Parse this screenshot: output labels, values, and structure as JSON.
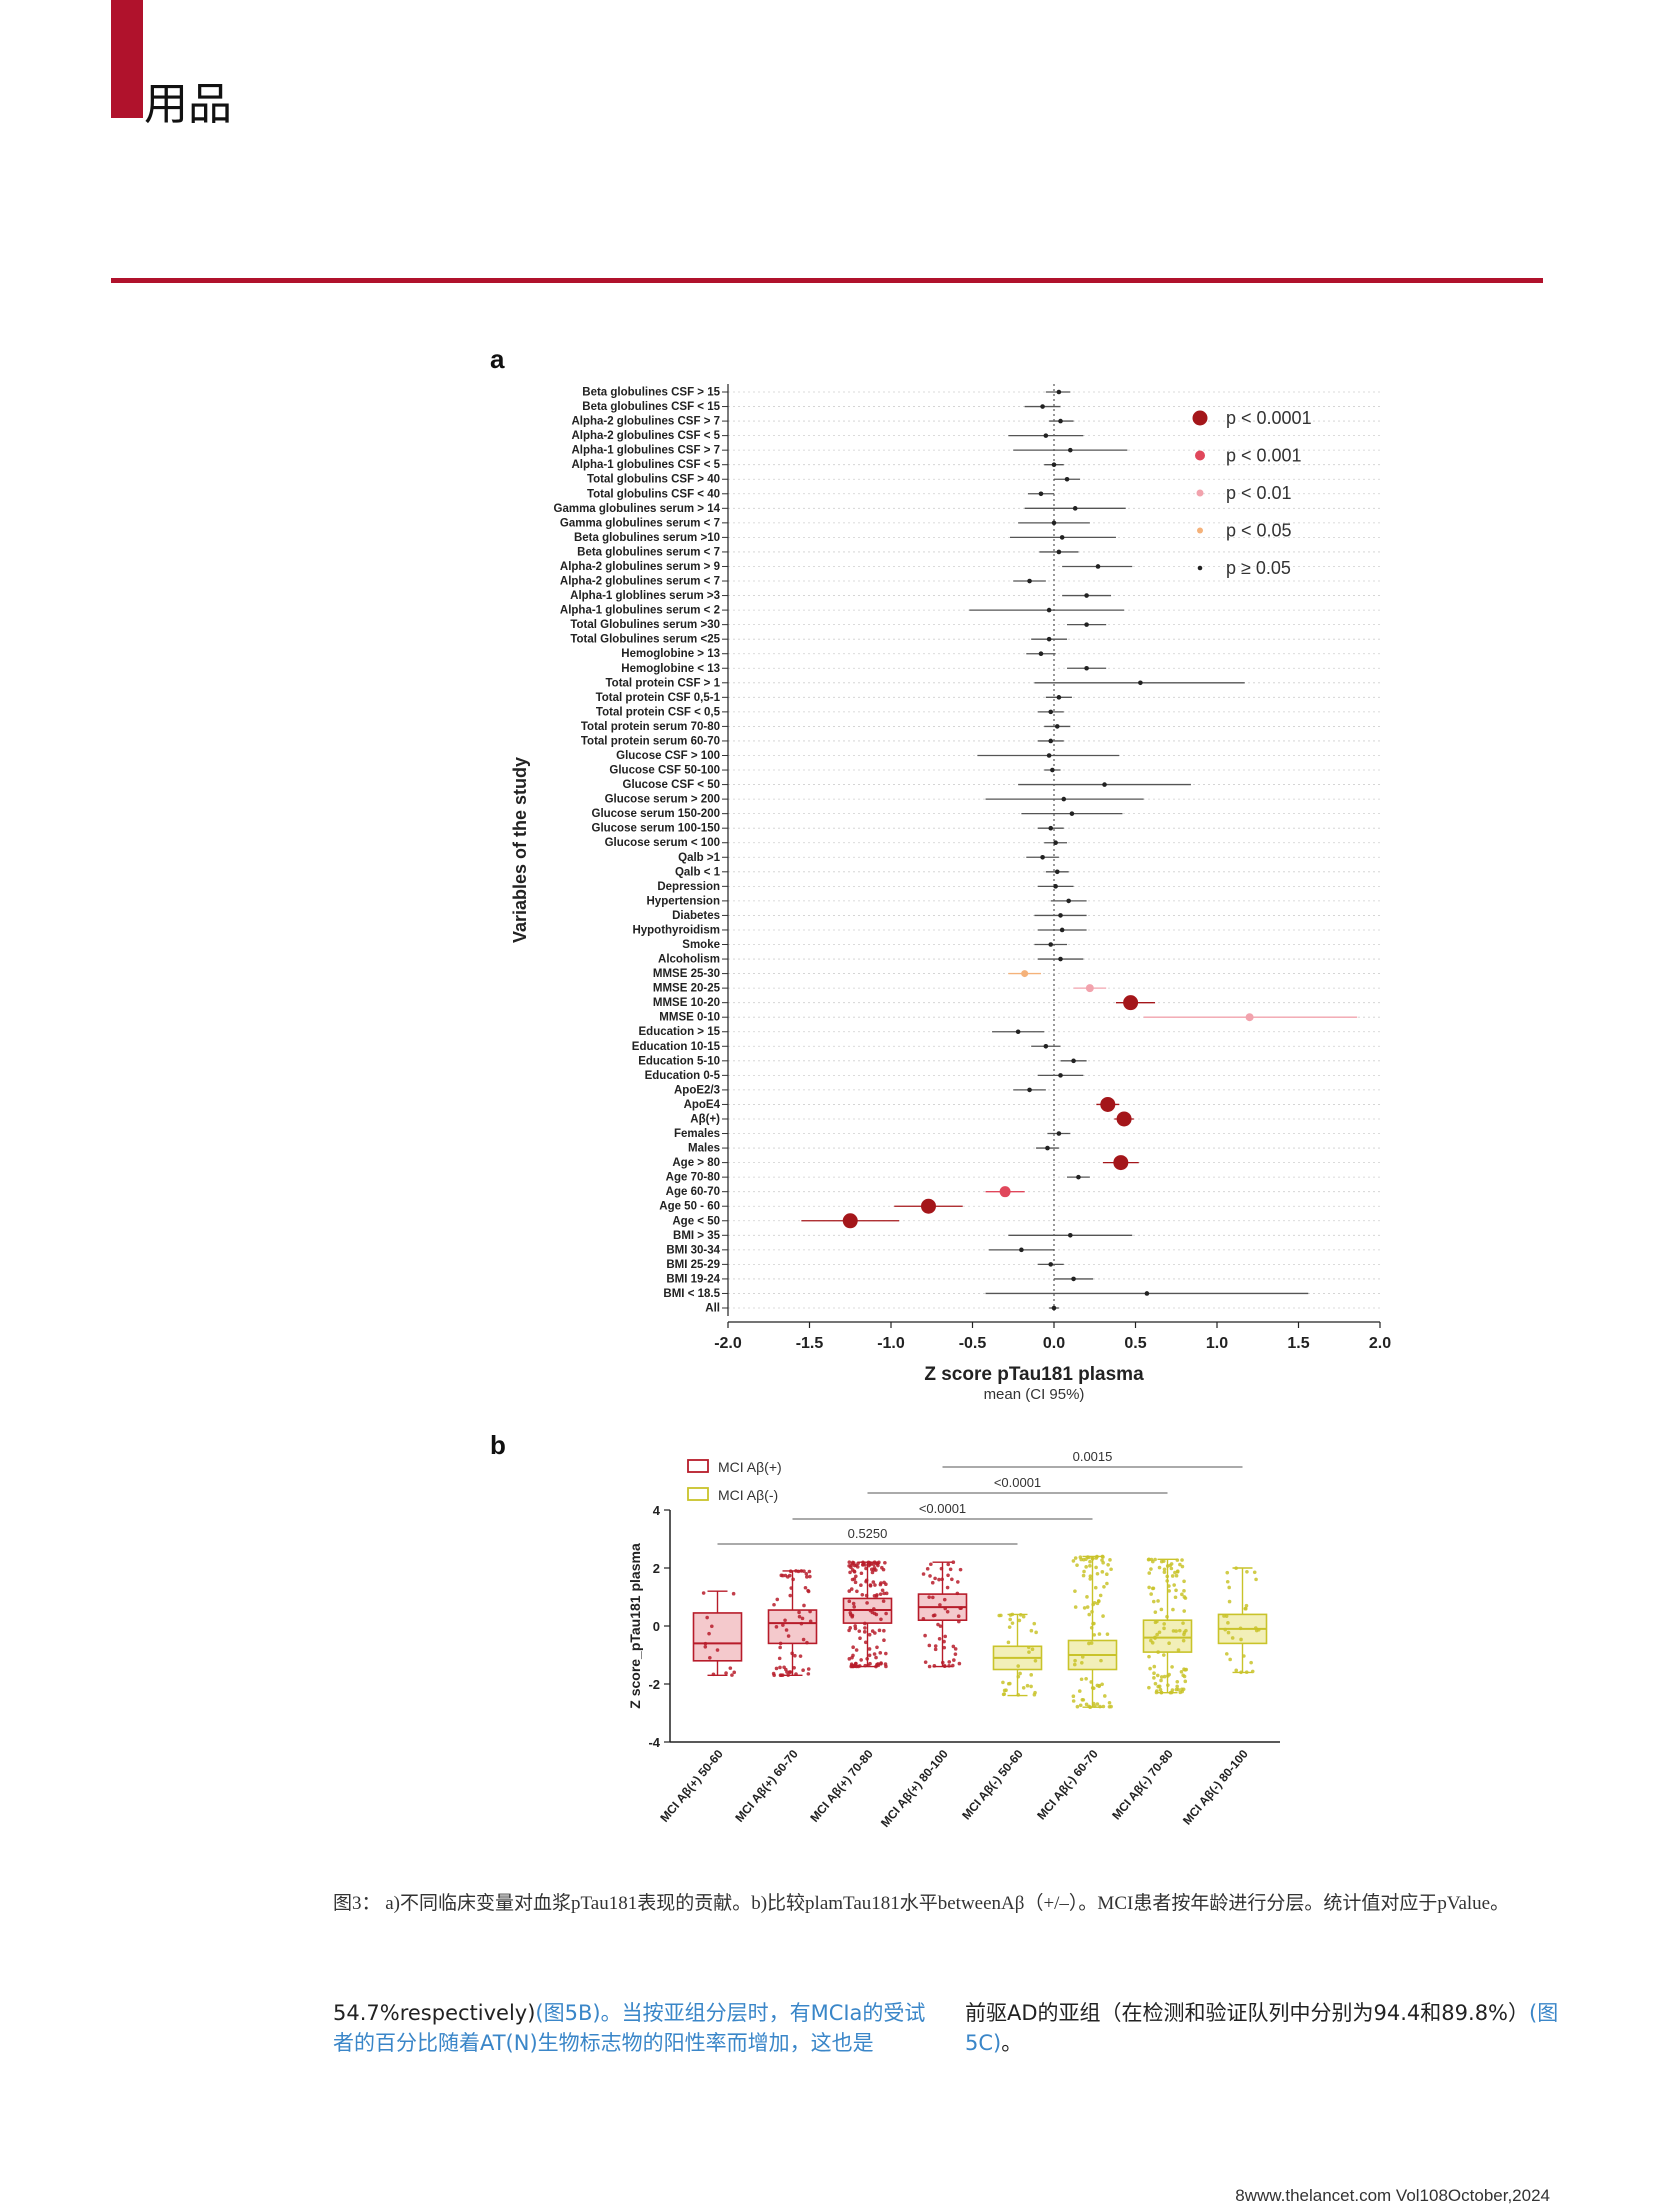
{
  "header": {
    "section_title": "用品"
  },
  "figure_a": {
    "panel_label": "a",
    "chart_data": {
      "type": "scatter",
      "subtype": "forest-plot",
      "xlabel": "Z score pTau181 plasma",
      "xlabel_sub": "mean (CI 95%)",
      "ylabel": "Variables of the study",
      "xlim": [
        -2.0,
        2.0
      ],
      "xticks": [
        "-2.0",
        "-1.5",
        "-1.0",
        "-0.5",
        "0.0",
        "0.5",
        "1.0",
        "1.5",
        "2.0"
      ],
      "legend": [
        {
          "label": "p < 0.0001",
          "color": "#a4161a"
        },
        {
          "label": "p < 0.001",
          "color": "#e0475b"
        },
        {
          "label": "p < 0.01",
          "color": "#f2a3ad"
        },
        {
          "label": "p < 0.05",
          "color": "#f5b27a"
        },
        {
          "label": "p ≥ 0.05",
          "color": "#222222"
        }
      ],
      "legend_position": "top-right",
      "rows": [
        {
          "label": "Beta globulines CSF > 15",
          "mean": 0.03,
          "lo": -0.05,
          "hi": 0.1,
          "p": "ns"
        },
        {
          "label": "Beta globulines CSF < 15",
          "mean": -0.07,
          "lo": -0.18,
          "hi": 0.04,
          "p": "ns"
        },
        {
          "label": "Alpha-2 globulines CSF > 7",
          "mean": 0.04,
          "lo": -0.03,
          "hi": 0.12,
          "p": "ns"
        },
        {
          "label": "Alpha-2 globulines CSF < 5",
          "mean": -0.05,
          "lo": -0.28,
          "hi": 0.18,
          "p": "ns"
        },
        {
          "label": "Alpha-1 globulines CSF > 7",
          "mean": 0.1,
          "lo": -0.25,
          "hi": 0.45,
          "p": "ns"
        },
        {
          "label": "Alpha-1 globulines CSF < 5",
          "mean": 0.0,
          "lo": -0.06,
          "hi": 0.06,
          "p": "ns"
        },
        {
          "label": "Total globulins CSF > 40",
          "mean": 0.08,
          "lo": 0.0,
          "hi": 0.16,
          "p": "ns"
        },
        {
          "label": "Total globulins CSF < 40",
          "mean": -0.08,
          "lo": -0.16,
          "hi": 0.0,
          "p": "ns"
        },
        {
          "label": "Gamma globulines serum > 14",
          "mean": 0.13,
          "lo": -0.18,
          "hi": 0.44,
          "p": "ns"
        },
        {
          "label": "Gamma globulines serum < 7",
          "mean": 0.0,
          "lo": -0.22,
          "hi": 0.22,
          "p": "ns"
        },
        {
          "label": "Beta globulines serum >10",
          "mean": 0.05,
          "lo": -0.27,
          "hi": 0.38,
          "p": "ns"
        },
        {
          "label": "Beta globulines serum < 7",
          "mean": 0.03,
          "lo": -0.09,
          "hi": 0.15,
          "p": "ns"
        },
        {
          "label": "Alpha-2 globulines serum > 9",
          "mean": 0.27,
          "lo": 0.05,
          "hi": 0.48,
          "p": "ns"
        },
        {
          "label": "Alpha-2 globulines serum < 7",
          "mean": -0.15,
          "lo": -0.25,
          "hi": -0.05,
          "p": "ns"
        },
        {
          "label": "Alpha-1 globlines serum >3",
          "mean": 0.2,
          "lo": 0.05,
          "hi": 0.35,
          "p": "ns"
        },
        {
          "label": "Alpha-1 globulines serum < 2",
          "mean": -0.03,
          "lo": -0.52,
          "hi": 0.43,
          "p": "ns"
        },
        {
          "label": "Total Globulines serum >30",
          "mean": 0.2,
          "lo": 0.08,
          "hi": 0.32,
          "p": "ns"
        },
        {
          "label": "Total Globulines serum <25",
          "mean": -0.03,
          "lo": -0.14,
          "hi": 0.08,
          "p": "ns"
        },
        {
          "label": "Hemoglobine > 13",
          "mean": -0.08,
          "lo": -0.17,
          "hi": 0.01,
          "p": "ns"
        },
        {
          "label": "Hemoglobine < 13",
          "mean": 0.2,
          "lo": 0.08,
          "hi": 0.32,
          "p": "ns"
        },
        {
          "label": "Total protein CSF > 1",
          "mean": 0.53,
          "lo": -0.12,
          "hi": 1.17,
          "p": "ns"
        },
        {
          "label": "Total protein CSF 0,5-1",
          "mean": 0.03,
          "lo": -0.05,
          "hi": 0.11,
          "p": "ns"
        },
        {
          "label": "Total protein CSF < 0,5",
          "mean": -0.02,
          "lo": -0.1,
          "hi": 0.06,
          "p": "ns"
        },
        {
          "label": "Total protein serum 70-80",
          "mean": 0.02,
          "lo": -0.06,
          "hi": 0.1,
          "p": "ns"
        },
        {
          "label": "Total protein serum 60-70",
          "mean": -0.02,
          "lo": -0.1,
          "hi": 0.06,
          "p": "ns"
        },
        {
          "label": "Glucose CSF > 100",
          "mean": -0.03,
          "lo": -0.47,
          "hi": 0.4,
          "p": "ns"
        },
        {
          "label": "Glucose CSF 50-100",
          "mean": -0.01,
          "lo": -0.06,
          "hi": 0.04,
          "p": "ns"
        },
        {
          "label": "Glucose CSF < 50",
          "mean": 0.31,
          "lo": -0.22,
          "hi": 0.84,
          "p": "ns"
        },
        {
          "label": "Glucose serum > 200",
          "mean": 0.06,
          "lo": -0.42,
          "hi": 0.55,
          "p": "ns"
        },
        {
          "label": "Glucose serum 150-200",
          "mean": 0.11,
          "lo": -0.2,
          "hi": 0.42,
          "p": "ns"
        },
        {
          "label": "Glucose serum 100-150",
          "mean": -0.02,
          "lo": -0.1,
          "hi": 0.06,
          "p": "ns"
        },
        {
          "label": "Glucose serum < 100",
          "mean": 0.01,
          "lo": -0.06,
          "hi": 0.08,
          "p": "ns"
        },
        {
          "label": "Qalb >1",
          "mean": -0.07,
          "lo": -0.17,
          "hi": 0.03,
          "p": "ns"
        },
        {
          "label": "Qalb < 1",
          "mean": 0.02,
          "lo": -0.05,
          "hi": 0.09,
          "p": "ns"
        },
        {
          "label": "Depression",
          "mean": 0.01,
          "lo": -0.1,
          "hi": 0.12,
          "p": "ns"
        },
        {
          "label": "Hypertension",
          "mean": 0.09,
          "lo": -0.02,
          "hi": 0.2,
          "p": "ns"
        },
        {
          "label": "Diabetes",
          "mean": 0.04,
          "lo": -0.12,
          "hi": 0.2,
          "p": "ns"
        },
        {
          "label": "Hypothyroidism",
          "mean": 0.05,
          "lo": -0.1,
          "hi": 0.2,
          "p": "ns"
        },
        {
          "label": "Smoke",
          "mean": -0.02,
          "lo": -0.12,
          "hi": 0.08,
          "p": "ns"
        },
        {
          "label": "Alcoholism",
          "mean": 0.04,
          "lo": -0.1,
          "hi": 0.18,
          "p": "ns"
        },
        {
          "label": "MMSE 25-30",
          "mean": -0.18,
          "lo": -0.28,
          "hi": -0.08,
          "p": "p<0.05"
        },
        {
          "label": "MMSE 20-25",
          "mean": 0.22,
          "lo": 0.12,
          "hi": 0.32,
          "p": "p<0.01"
        },
        {
          "label": "MMSE 10-20",
          "mean": 0.47,
          "lo": 0.38,
          "hi": 0.62,
          "p": "p<0.0001"
        },
        {
          "label": "MMSE 0-10",
          "mean": 1.2,
          "lo": 0.55,
          "hi": 1.86,
          "p": "p<0.01"
        },
        {
          "label": "Education > 15",
          "mean": -0.22,
          "lo": -0.38,
          "hi": -0.06,
          "p": "ns"
        },
        {
          "label": "Education 10-15",
          "mean": -0.05,
          "lo": -0.14,
          "hi": 0.04,
          "p": "ns"
        },
        {
          "label": "Education 5-10",
          "mean": 0.12,
          "lo": 0.04,
          "hi": 0.2,
          "p": "ns"
        },
        {
          "label": "Education 0-5",
          "mean": 0.04,
          "lo": -0.1,
          "hi": 0.18,
          "p": "ns"
        },
        {
          "label": "ApoE2/3",
          "mean": -0.15,
          "lo": -0.25,
          "hi": -0.05,
          "p": "ns"
        },
        {
          "label": "ApoE4",
          "mean": 0.33,
          "lo": 0.26,
          "hi": 0.4,
          "p": "p<0.0001"
        },
        {
          "label": "Aβ(+)",
          "mean": 0.43,
          "lo": 0.37,
          "hi": 0.49,
          "p": "p<0.0001"
        },
        {
          "label": "Females",
          "mean": 0.03,
          "lo": -0.04,
          "hi": 0.1,
          "p": "ns"
        },
        {
          "label": "Males",
          "mean": -0.04,
          "lo": -0.11,
          "hi": 0.03,
          "p": "ns"
        },
        {
          "label": "Age > 80",
          "mean": 0.41,
          "lo": 0.3,
          "hi": 0.52,
          "p": "p<0.0001"
        },
        {
          "label": "Age 70-80",
          "mean": 0.15,
          "lo": 0.08,
          "hi": 0.22,
          "p": "ns"
        },
        {
          "label": "Age 60-70",
          "mean": -0.3,
          "lo": -0.42,
          "hi": -0.18,
          "p": "p<0.001"
        },
        {
          "label": "Age 50 - 60",
          "mean": -0.77,
          "lo": -0.98,
          "hi": -0.56,
          "p": "p<0.0001"
        },
        {
          "label": "Age < 50",
          "mean": -1.25,
          "lo": -1.55,
          "hi": -0.95,
          "p": "p<0.0001"
        },
        {
          "label": "BMI > 35",
          "mean": 0.1,
          "lo": -0.28,
          "hi": 0.48,
          "p": "ns"
        },
        {
          "label": "BMI 30-34",
          "mean": -0.2,
          "lo": -0.4,
          "hi": 0.0,
          "p": "ns"
        },
        {
          "label": "BMI 25-29",
          "mean": -0.02,
          "lo": -0.1,
          "hi": 0.06,
          "p": "ns"
        },
        {
          "label": "BMI 19-24",
          "mean": 0.12,
          "lo": 0.0,
          "hi": 0.24,
          "p": "ns"
        },
        {
          "label": "BMI < 18.5",
          "mean": 0.57,
          "lo": -0.42,
          "hi": 1.56,
          "p": "ns"
        },
        {
          "label": "All",
          "mean": 0.0,
          "lo": -0.03,
          "hi": 0.03,
          "p": "ns"
        }
      ]
    }
  },
  "figure_b": {
    "panel_label": "b",
    "chart_data": {
      "type": "box",
      "ylabel": "Z score_pTau181 plasma",
      "ylim": [
        -4,
        4
      ],
      "yticks": [
        "-4",
        "-2",
        "0",
        "2",
        "4"
      ],
      "legend": [
        {
          "label": "MCI Aβ(+)",
          "color": "#b71c2a"
        },
        {
          "label": "MCI Aβ(-)",
          "color": "#c9c32a"
        }
      ],
      "legend_position": "top-left",
      "groups": [
        {
          "label": "MCI Aβ(+) 50-60",
          "q1": -1.2,
          "median": -0.6,
          "q3": 0.45,
          "min": -1.7,
          "max": 1.2,
          "n": 14,
          "color": "#b71c2a"
        },
        {
          "label": "MCI Aβ(+) 60-70",
          "q1": -0.6,
          "median": 0.1,
          "q3": 0.55,
          "min": -1.7,
          "max": 1.9,
          "n": 60,
          "color": "#b71c2a"
        },
        {
          "label": "MCI Aβ(+) 70-80",
          "q1": 0.1,
          "median": 0.55,
          "q3": 0.95,
          "min": -1.4,
          "max": 2.2,
          "n": 140,
          "color": "#b71c2a"
        },
        {
          "label": "MCI Aβ(+) 80-100",
          "q1": 0.2,
          "median": 0.65,
          "q3": 1.1,
          "min": -1.4,
          "max": 2.2,
          "n": 55,
          "color": "#b71c2a"
        },
        {
          "label": "MCI Aβ(-) 50-60",
          "q1": -1.5,
          "median": -1.1,
          "q3": -0.7,
          "min": -2.4,
          "max": 0.4,
          "n": 35,
          "color": "#c9c32a"
        },
        {
          "label": "MCI Aβ(-) 60-70",
          "q1": -1.5,
          "median": -1.0,
          "q3": -0.5,
          "min": -2.8,
          "max": 2.4,
          "n": 90,
          "color": "#c9c32a"
        },
        {
          "label": "MCI Aβ(-) 70-80",
          "q1": -0.9,
          "median": -0.4,
          "q3": 0.2,
          "min": -2.3,
          "max": 2.3,
          "n": 110,
          "color": "#c9c32a"
        },
        {
          "label": "MCI Aβ(-) 80-100",
          "q1": -0.6,
          "median": -0.1,
          "q3": 0.4,
          "min": -1.6,
          "max": 2.0,
          "n": 30,
          "color": "#c9c32a"
        }
      ],
      "comparisons": [
        {
          "from": 3,
          "to": 7,
          "p": "0.0015"
        },
        {
          "from": 2,
          "to": 6,
          "p": "<0.0001"
        },
        {
          "from": 1,
          "to": 5,
          "p": "<0.0001"
        },
        {
          "from": 0,
          "to": 4,
          "p": "0.5250"
        }
      ]
    }
  },
  "caption": "图3： a)不同临床变量对血浆pTau181表现的贡献。b)比较plamTau181水平betweenAβ（+/–）。MCI患者按年龄进行分层。统计值对应于pValue。",
  "body_left": {
    "prefix": "54.7%respectively)",
    "link1": "(图5B)",
    "rest": "。当按亚组分层时，有MCIa的受试者的百分比随着AT(N)生物标志物的阳性率而增加，这也是"
  },
  "body_right": {
    "text": "前驱AD的亚组（在检测和验证队列中分别为94.4和89.8%）",
    "link": "(图5C)",
    "suffix": "。"
  },
  "footer": "8www.thelancet.com Vol108October,2024"
}
